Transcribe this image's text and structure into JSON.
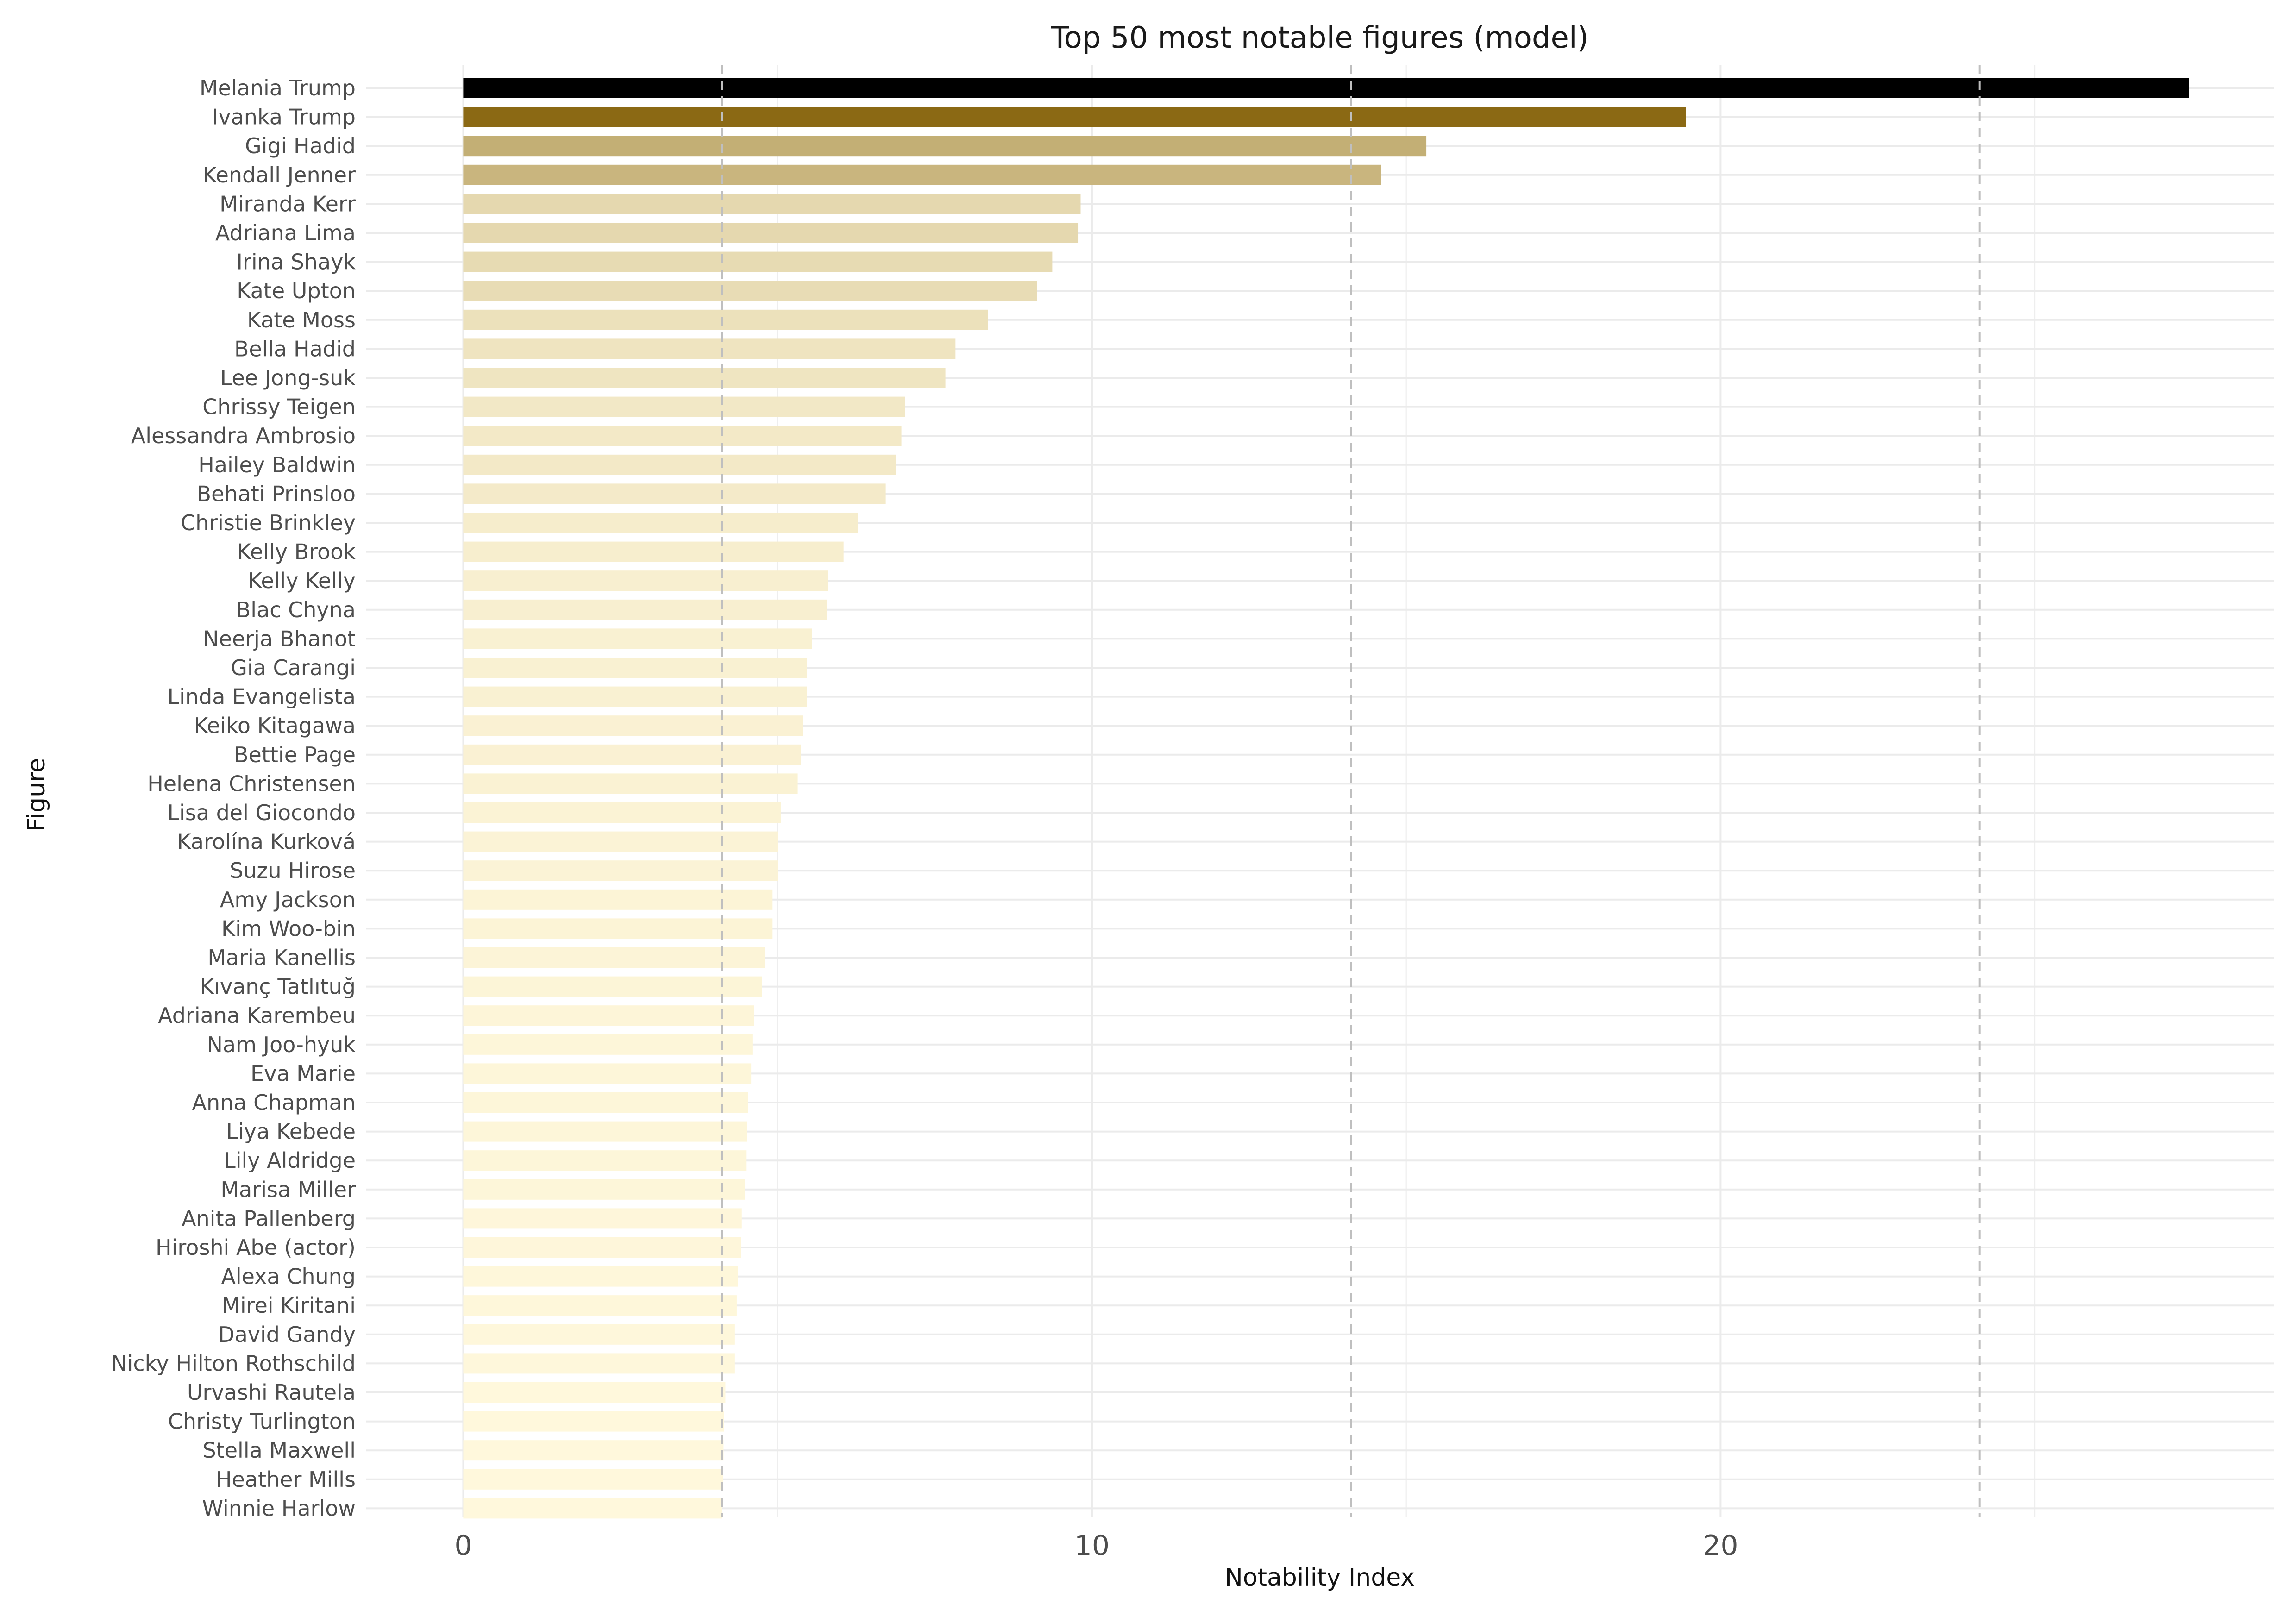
{
  "chart_data": {
    "type": "bar",
    "orientation": "horizontal",
    "title": "Top 50 most notable figures (model)",
    "xlabel": "Notability Index",
    "ylabel": "Figure",
    "xlim": [
      -1.55,
      28.8
    ],
    "xticks": [
      0,
      10,
      20
    ],
    "reference_lines": [
      4.12,
      14.12,
      24.12
    ],
    "grid": true,
    "legend": "none",
    "colors": {
      "top": "#000000",
      "high": "#8b6914",
      "low": "#fff8dc",
      "gridline": "#ebebeb",
      "reference": "#bfbfbf"
    },
    "categories": [
      "Melania Trump",
      "Ivanka Trump",
      "Gigi Hadid",
      "Kendall Jenner",
      "Miranda Kerr",
      "Adriana Lima",
      "Irina Shayk",
      "Kate Upton",
      "Kate Moss",
      "Bella Hadid",
      "Lee Jong-suk",
      "Chrissy Teigen",
      "Alessandra Ambrosio",
      "Hailey Baldwin",
      "Behati Prinsloo",
      "Christie Brinkley",
      "Kelly Brook",
      "Kelly Kelly",
      "Blac Chyna",
      "Neerja Bhanot",
      "Gia Carangi",
      "Linda Evangelista",
      "Keiko Kitagawa",
      "Bettie Page",
      "Helena Christensen",
      "Lisa del Giocondo",
      "Karolína Kurková",
      "Suzu Hirose",
      "Amy Jackson",
      "Kim Woo-bin",
      "Maria Kanellis",
      "Kıvanç Tatlıtuğ",
      "Adriana Karembeu",
      "Nam Joo-hyuk",
      "Eva Marie",
      "Anna Chapman",
      "Liya Kebede",
      "Lily Aldridge",
      "Marisa Miller",
      "Anita Pallenberg",
      "Hiroshi Abe (actor)",
      "Alexa Chung",
      "Mirei Kiritani",
      "David Gandy",
      "Nicky Hilton Rothschild",
      "Urvashi Rautela",
      "Christy Turlington",
      "Stella Maxwell",
      "Heather Mills",
      "Winnie Harlow"
    ],
    "values": [
      27.45,
      19.45,
      15.32,
      14.6,
      9.82,
      9.78,
      9.37,
      9.13,
      8.35,
      7.83,
      7.67,
      7.03,
      6.97,
      6.88,
      6.72,
      6.28,
      6.05,
      5.8,
      5.78,
      5.55,
      5.47,
      5.47,
      5.4,
      5.37,
      5.32,
      5.05,
      5.0,
      5.0,
      4.92,
      4.92,
      4.8,
      4.75,
      4.63,
      4.6,
      4.58,
      4.53,
      4.52,
      4.5,
      4.48,
      4.43,
      4.42,
      4.37,
      4.35,
      4.32,
      4.32,
      4.17,
      4.15,
      4.14,
      4.13,
      4.12
    ]
  }
}
